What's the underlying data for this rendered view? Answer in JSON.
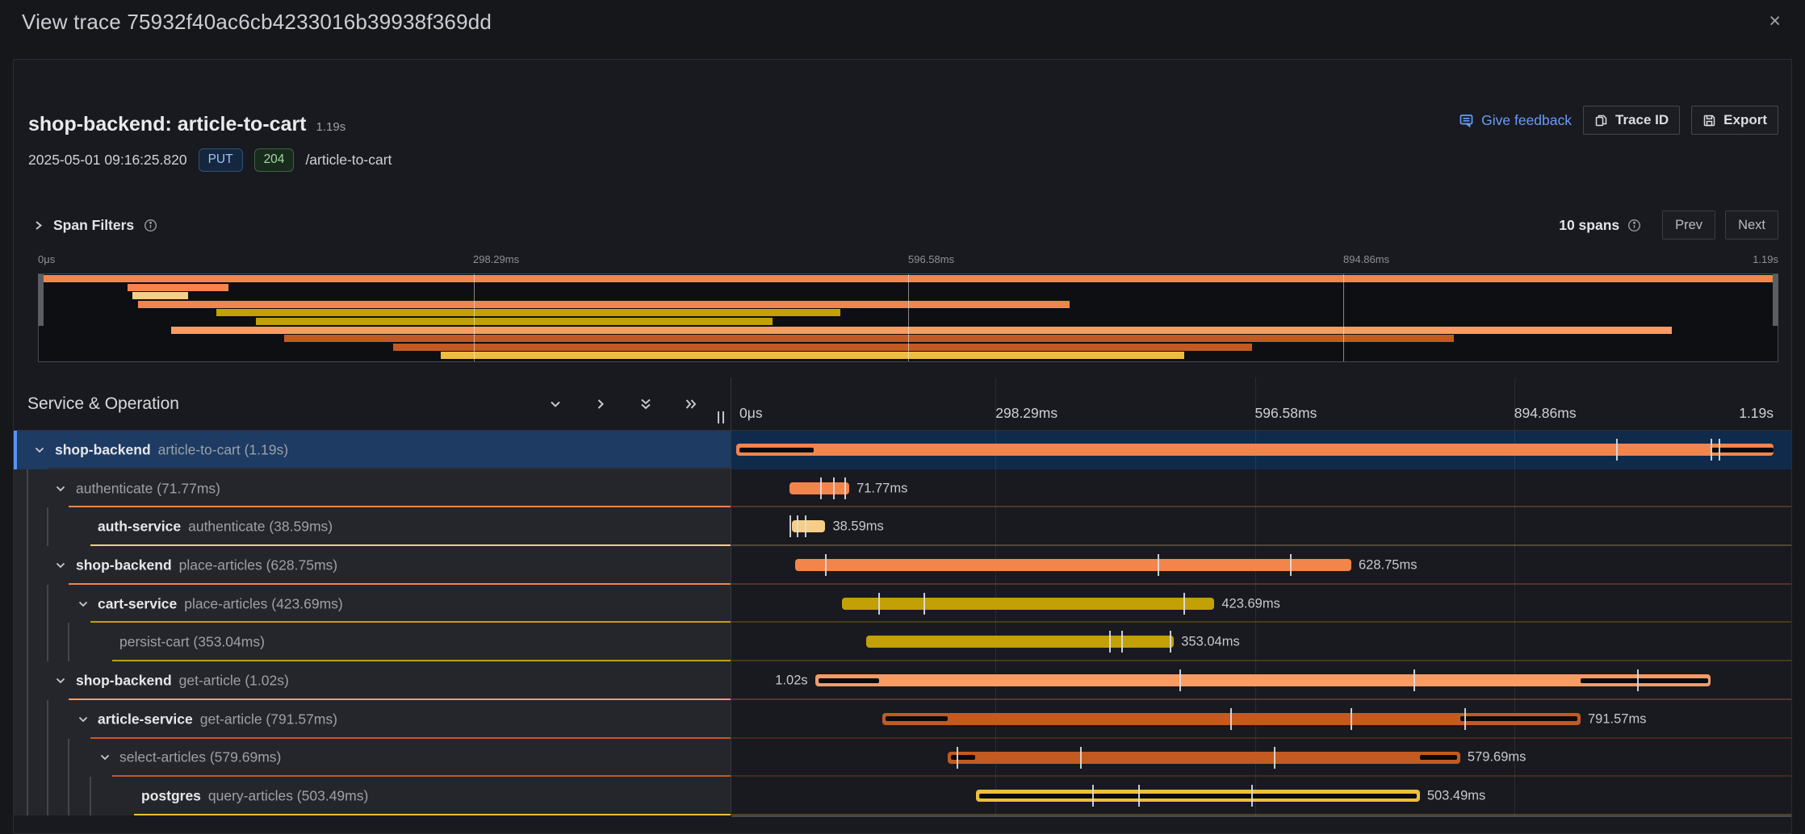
{
  "window": {
    "title": "View trace 75932f40ac6cb4233016b39938f369dd",
    "close_icon": "×"
  },
  "header": {
    "title": "shop-backend: article-to-cart",
    "duration": "1.19s",
    "timestamp": "2025-05-01 09:16:25.820",
    "method_badge": "PUT",
    "status_badge": "204",
    "path": "/article-to-cart",
    "feedback_label": "Give feedback",
    "trace_id_label": "Trace ID",
    "export_label": "Export"
  },
  "controls": {
    "span_filters_label": "Span Filters",
    "span_count": "10 spans",
    "prev_label": "Prev",
    "next_label": "Next"
  },
  "timeline": {
    "column_header": "Service & Operation",
    "ticks": [
      "0μs",
      "298.29ms",
      "596.58ms",
      "894.86ms",
      "1.19s"
    ],
    "tick_positions": [
      0,
      25,
      50,
      75,
      100
    ]
  },
  "spans": [
    {
      "depth": 1,
      "service": "shop-backend",
      "operation": "article-to-cart",
      "duration": "(1.19s)",
      "expandable": true,
      "selected": true,
      "color": "#F2854C",
      "start": 0,
      "end": 100,
      "label": "",
      "label_side": "right",
      "critical": [
        [
          0.3,
          7.5
        ],
        [
          94.0,
          100
        ]
      ],
      "events": [
        84.9,
        94.0,
        94.8
      ]
    },
    {
      "depth": 2,
      "service": "",
      "operation": "authenticate",
      "duration": "(71.77ms)",
      "expandable": true,
      "selected": false,
      "color": "#F2854C",
      "start": 5.1,
      "end": 10.9,
      "label": "71.77ms",
      "label_side": "right",
      "critical": [],
      "events": [
        8.2,
        9.4,
        10.5
      ]
    },
    {
      "depth": 3,
      "service": "auth-service",
      "operation": "authenticate",
      "duration": "(38.59ms)",
      "expandable": false,
      "selected": false,
      "color": "#F5CE87",
      "start": 5.4,
      "end": 8.6,
      "label": "38.59ms",
      "label_side": "right",
      "critical": [],
      "events": [
        5.2,
        5.9,
        6.7
      ]
    },
    {
      "depth": 2,
      "service": "shop-backend",
      "operation": "place-articles",
      "duration": "(628.75ms)",
      "expandable": true,
      "selected": false,
      "color": "#F2854C",
      "start": 5.7,
      "end": 59.3,
      "label": "628.75ms",
      "label_side": "right",
      "critical": [],
      "events": [
        8.6,
        40.7,
        53.5
      ]
    },
    {
      "depth": 3,
      "service": "cart-service",
      "operation": "place-articles",
      "duration": "(423.69ms)",
      "expandable": true,
      "selected": false,
      "color": "#C2A006",
      "start": 10.2,
      "end": 46.1,
      "label": "423.69ms",
      "label_side": "right",
      "critical": [],
      "events": [
        13.8,
        18.1,
        43.2
      ]
    },
    {
      "depth": 4,
      "service": "",
      "operation": "persist-cart",
      "duration": "(353.04ms)",
      "expandable": false,
      "selected": false,
      "color": "#C2A006",
      "start": 12.5,
      "end": 42.2,
      "label": "353.04ms",
      "label_side": "right",
      "critical": [],
      "events": [
        36.0,
        37.2,
        41.9
      ]
    },
    {
      "depth": 2,
      "service": "shop-backend",
      "operation": "get-article",
      "duration": "(1.02s)",
      "expandable": true,
      "selected": false,
      "color": "#F79C64",
      "start": 7.6,
      "end": 93.9,
      "label": "1.02s",
      "label_side": "left",
      "critical": [
        [
          7.9,
          13.8
        ],
        [
          81.4,
          93.7
        ]
      ],
      "events": [
        42.8,
        65.4,
        86.9
      ]
    },
    {
      "depth": 3,
      "service": "article-service",
      "operation": "get-article",
      "duration": "(791.57ms)",
      "expandable": true,
      "selected": false,
      "color": "#C35A21",
      "start": 14.1,
      "end": 81.4,
      "label": "791.57ms",
      "label_side": "right",
      "critical": [
        [
          14.4,
          20.4
        ],
        [
          69.8,
          81.1
        ]
      ],
      "events": [
        47.7,
        59.3,
        70.3
      ]
    },
    {
      "depth": 4,
      "service": "",
      "operation": "select-articles",
      "duration": "(579.69ms)",
      "expandable": true,
      "selected": false,
      "color": "#C35A21",
      "start": 20.4,
      "end": 69.8,
      "label": "579.69ms",
      "label_side": "right",
      "critical": [
        [
          20.7,
          23.0
        ],
        [
          65.9,
          69.5
        ]
      ],
      "events": [
        21.3,
        33.2,
        51.9
      ]
    },
    {
      "depth": 5,
      "service": "postgres",
      "operation": "query-articles",
      "duration": "(503.49ms)",
      "expandable": false,
      "selected": false,
      "color": "#ECBE3F",
      "start": 23.1,
      "end": 65.9,
      "label": "503.49ms",
      "label_side": "right",
      "critical": [
        [
          23.4,
          65.6
        ]
      ],
      "events": [
        34.4,
        38.8,
        49.7
      ]
    }
  ]
}
